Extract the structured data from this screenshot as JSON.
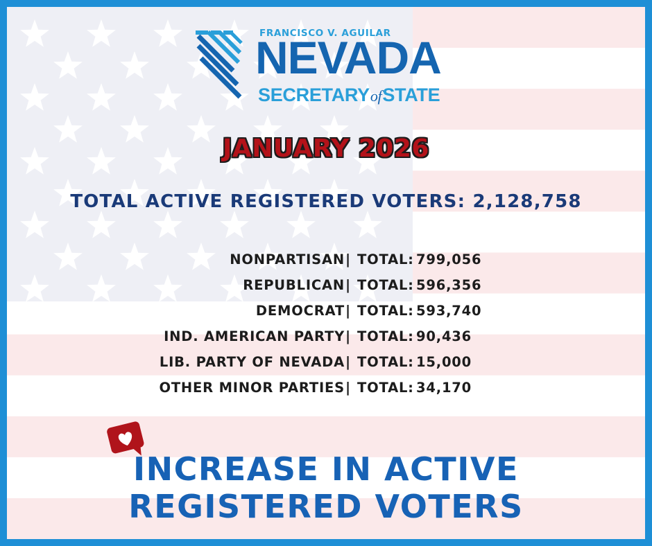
{
  "logo": {
    "name": "FRANCISCO V. AGUILAR",
    "state": "NEVADA",
    "office_pre": "SECRETARY",
    "office_of": "of",
    "office_post": "STATE"
  },
  "month": "JANUARY 2026",
  "total": {
    "label": "TOTAL ACTIVE REGISTERED VOTERS:",
    "value": "2,128,758"
  },
  "parties": [
    {
      "name": "NONPARTISAN",
      "separator": "|",
      "label": "TOTAL:",
      "value": "799,056"
    },
    {
      "name": "REPUBLICAN",
      "separator": "|",
      "label": "TOTAL:",
      "value": "596,356"
    },
    {
      "name": "DEMOCRAT",
      "separator": "|",
      "label": "TOTAL:",
      "value": "593,740"
    },
    {
      "name": "IND. AMERICAN PARTY",
      "separator": "|",
      "label": "TOTAL:",
      "value": "90,436"
    },
    {
      "name": "LIB. PARTY OF NEVADA",
      "separator": "|",
      "label": "TOTAL:",
      "value": "15,000"
    },
    {
      "name": "OTHER MINOR PARTIES",
      "separator": "|",
      "label": "TOTAL:",
      "value": "34,170"
    }
  ],
  "headline": {
    "line1": "INCREASE IN ACTIVE",
    "line2": "REGISTERED VOTERS"
  },
  "icons": {
    "badge": "heart-speech-bubble-icon",
    "logo_mark": "nevada-state-shape-icon"
  },
  "colors": {
    "border": "#1e8fd6",
    "month_red": "#b31219",
    "total_navy": "#1a3a78",
    "headline_blue": "#1762b5",
    "logo_blue": "#1565b0",
    "logo_light_blue": "#2a9fd9",
    "badge_red": "#b0141b"
  }
}
